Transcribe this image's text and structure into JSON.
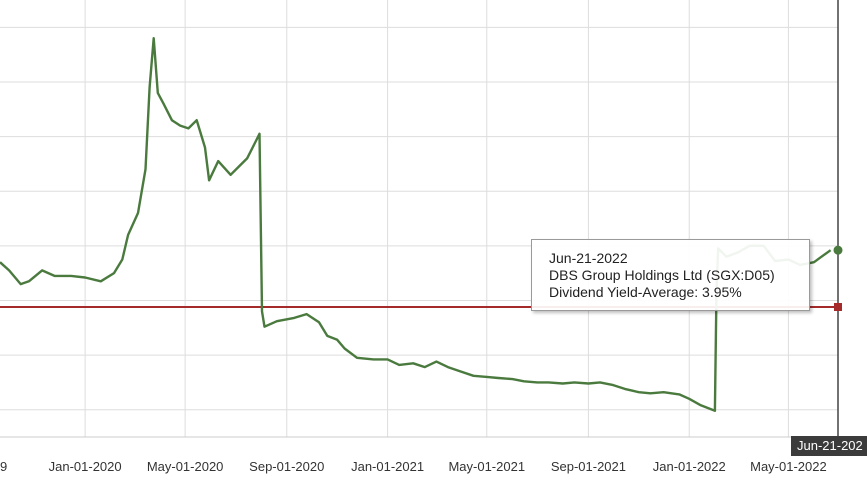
{
  "chart_data": {
    "type": "line",
    "xlim": [
      "2019-09-20",
      "2022-06-30"
    ],
    "ylim": [
      2.5,
      10.5
    ],
    "grid": true,
    "colors": {
      "series": "#4a7a3e",
      "reference": "#a52a2a",
      "grid": "#dddddd",
      "cursor": "#444444"
    },
    "x_ticks": [
      {
        "date": "2019-09-01",
        "label": "9"
      },
      {
        "date": "2020-01-01",
        "label": "Jan-01-2020"
      },
      {
        "date": "2020-05-01",
        "label": "May-01-2020"
      },
      {
        "date": "2020-09-01",
        "label": "Sep-01-2020"
      },
      {
        "date": "2021-01-01",
        "label": "Jan-01-2021"
      },
      {
        "date": "2021-05-01",
        "label": "May-01-2021"
      },
      {
        "date": "2021-09-01",
        "label": "Sep-01-2021"
      },
      {
        "date": "2022-01-01",
        "label": "Jan-01-2022"
      },
      {
        "date": "2022-05-01",
        "label": "May-01-2022"
      }
    ],
    "y_gridlines": [
      3,
      4,
      5,
      6,
      7,
      8,
      9,
      10
    ],
    "series": [
      {
        "points": [
          [
            "2019-09-20",
            5.7
          ],
          [
            "2019-10-01",
            5.55
          ],
          [
            "2019-10-15",
            5.3
          ],
          [
            "2019-10-25",
            5.35
          ],
          [
            "2019-11-10",
            5.55
          ],
          [
            "2019-11-25",
            5.45
          ],
          [
            "2019-12-15",
            5.45
          ],
          [
            "2020-01-01",
            5.42
          ],
          [
            "2020-01-20",
            5.35
          ],
          [
            "2020-02-05",
            5.5
          ],
          [
            "2020-02-15",
            5.75
          ],
          [
            "2020-02-22",
            6.2
          ],
          [
            "2020-03-05",
            6.6
          ],
          [
            "2020-03-14",
            7.4
          ],
          [
            "2020-03-19",
            8.9
          ],
          [
            "2020-03-24",
            9.8
          ],
          [
            "2020-03-29",
            8.8
          ],
          [
            "2020-04-05",
            8.6
          ],
          [
            "2020-04-15",
            8.3
          ],
          [
            "2020-04-25",
            8.2
          ],
          [
            "2020-05-05",
            8.15
          ],
          [
            "2020-05-15",
            8.3
          ],
          [
            "2020-05-25",
            7.8
          ],
          [
            "2020-05-30",
            7.2
          ],
          [
            "2020-06-10",
            7.55
          ],
          [
            "2020-06-25",
            7.3
          ],
          [
            "2020-07-05",
            7.45
          ],
          [
            "2020-07-15",
            7.6
          ],
          [
            "2020-07-25",
            7.9
          ],
          [
            "2020-07-30",
            8.05
          ],
          [
            "2020-08-02",
            4.8
          ],
          [
            "2020-08-05",
            4.52
          ],
          [
            "2020-08-20",
            4.62
          ],
          [
            "2020-09-10",
            4.68
          ],
          [
            "2020-09-25",
            4.75
          ],
          [
            "2020-10-10",
            4.6
          ],
          [
            "2020-10-20",
            4.35
          ],
          [
            "2020-11-01",
            4.28
          ],
          [
            "2020-11-10",
            4.12
          ],
          [
            "2020-11-25",
            3.95
          ],
          [
            "2020-12-15",
            3.92
          ],
          [
            "2021-01-01",
            3.92
          ],
          [
            "2021-01-15",
            3.82
          ],
          [
            "2021-02-01",
            3.85
          ],
          [
            "2021-02-15",
            3.78
          ],
          [
            "2021-03-01",
            3.88
          ],
          [
            "2021-03-15",
            3.78
          ],
          [
            "2021-03-30",
            3.7
          ],
          [
            "2021-04-15",
            3.62
          ],
          [
            "2021-05-01",
            3.6
          ],
          [
            "2021-05-15",
            3.58
          ],
          [
            "2021-06-01",
            3.56
          ],
          [
            "2021-06-15",
            3.52
          ],
          [
            "2021-07-01",
            3.5
          ],
          [
            "2021-07-15",
            3.5
          ],
          [
            "2021-08-01",
            3.48
          ],
          [
            "2021-08-15",
            3.5
          ],
          [
            "2021-09-01",
            3.48
          ],
          [
            "2021-09-15",
            3.5
          ],
          [
            "2021-10-01",
            3.45
          ],
          [
            "2021-10-15",
            3.38
          ],
          [
            "2021-11-01",
            3.32
          ],
          [
            "2021-11-15",
            3.3
          ],
          [
            "2021-12-01",
            3.32
          ],
          [
            "2021-12-20",
            3.28
          ],
          [
            "2022-01-01",
            3.2
          ],
          [
            "2022-01-15",
            3.08
          ],
          [
            "2022-02-01",
            2.98
          ],
          [
            "2022-02-03",
            5.2
          ],
          [
            "2022-02-05",
            5.95
          ],
          [
            "2022-02-15",
            5.8
          ],
          [
            "2022-03-01",
            5.88
          ],
          [
            "2022-03-15",
            6.0
          ],
          [
            "2022-04-01",
            6.0
          ],
          [
            "2022-04-15",
            5.72
          ],
          [
            "2022-05-01",
            5.75
          ],
          [
            "2022-05-15",
            5.65
          ],
          [
            "2022-06-01",
            5.7
          ],
          [
            "2022-06-10",
            5.8
          ],
          [
            "2022-06-21",
            5.92
          ]
        ]
      },
      {
        "values": [
          [
            "2019-09-20",
            4.88
          ],
          [
            "2022-06-30",
            4.88
          ]
        ]
      }
    ]
  },
  "tooltip": {
    "date": "Jun-21-2022",
    "company": "DBS Group Holdings Ltd (SGX:D05)",
    "metric": "Dividend Yield-Average: 3.95%"
  },
  "cursor": {
    "date": "2022-06-21",
    "label": "Jun-21-202"
  }
}
